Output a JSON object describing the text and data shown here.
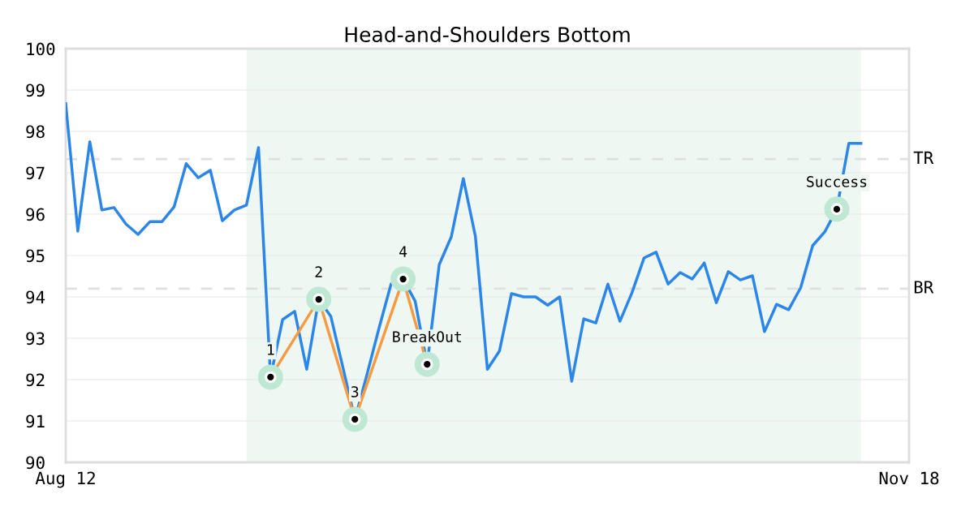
{
  "chart_data": {
    "type": "line",
    "title": "Head-and-Shoulders Bottom",
    "categories": [
      "Aug 12",
      null,
      null,
      null,
      null,
      null,
      null,
      null,
      null,
      null,
      null,
      null,
      null,
      null,
      null,
      null,
      null,
      null,
      null,
      null,
      null,
      null,
      null,
      null,
      null,
      null,
      null,
      null,
      null,
      null,
      null,
      null,
      null,
      null,
      null,
      null,
      null,
      null,
      null,
      null,
      null,
      null,
      null,
      null,
      null,
      null,
      null,
      null,
      null,
      null,
      null,
      null,
      null,
      null,
      null,
      null,
      null,
      null,
      null,
      null,
      null,
      null,
      null,
      null,
      null,
      null,
      null,
      null,
      null,
      null,
      "Nov 18"
    ],
    "ylim": [
      90,
      100
    ],
    "yticks": [
      90,
      91,
      92,
      93,
      94,
      95,
      96,
      97,
      98,
      99,
      100
    ],
    "grid": "y",
    "series": [
      {
        "color": "#2b86e8",
        "values": [
          98.67,
          95.59,
          97.75,
          96.1,
          96.16,
          95.76,
          95.51,
          95.82,
          95.82,
          96.18,
          97.22,
          96.88,
          97.06,
          95.84,
          96.1,
          96.22,
          97.61,
          92.06,
          93.45,
          93.65,
          92.25,
          93.94,
          93.53,
          92.3,
          91.04,
          92.12,
          93.24,
          94.31,
          94.43,
          93.9,
          92.37,
          94.78,
          95.45,
          96.86,
          95.47,
          92.25,
          92.69,
          94.08,
          94.0,
          94.0,
          93.8,
          94.0,
          91.96,
          93.47,
          93.37,
          94.31,
          93.41,
          94.1,
          94.94,
          95.08,
          94.31,
          94.59,
          94.43,
          94.82,
          93.86,
          94.61,
          94.41,
          94.51,
          93.16,
          93.82,
          93.69,
          94.22,
          95.24,
          95.57,
          96.12,
          97.71,
          97.71,
          null,
          null,
          null,
          null
        ]
      },
      {
        "type": "line",
        "color": "#f59c42",
        "marker": "circle",
        "values": [
          null,
          null,
          null,
          null,
          null,
          null,
          null,
          null,
          null,
          null,
          null,
          null,
          null,
          null,
          null,
          null,
          null,
          92.06,
          null,
          null,
          null,
          93.94,
          null,
          null,
          91.04,
          null,
          null,
          null,
          94.43,
          null,
          92.37,
          null,
          null,
          null,
          null,
          null,
          null,
          null,
          null,
          null,
          null,
          null,
          null,
          null,
          null,
          null,
          null,
          null,
          null,
          null,
          null,
          null,
          null,
          null,
          null,
          null,
          null,
          null,
          null,
          null,
          null,
          null,
          null,
          null,
          null,
          null,
          null,
          null,
          null,
          null,
          null
        ]
      },
      {
        "type": "scatter",
        "color": "#bfe8d4",
        "values": [
          null,
          null,
          null,
          null,
          null,
          null,
          null,
          null,
          null,
          null,
          null,
          null,
          null,
          null,
          null,
          null,
          null,
          null,
          null,
          null,
          null,
          null,
          null,
          null,
          null,
          null,
          null,
          null,
          null,
          null,
          null,
          null,
          null,
          null,
          null,
          null,
          null,
          null,
          null,
          null,
          null,
          null,
          null,
          null,
          null,
          null,
          null,
          null,
          null,
          null,
          null,
          null,
          null,
          null,
          null,
          null,
          null,
          null,
          null,
          null,
          null,
          null,
          null,
          null,
          96.12,
          null,
          null,
          null,
          null,
          null,
          null
        ]
      }
    ],
    "annotations": [
      {
        "text": "1",
        "y": 92.06
      },
      {
        "text": "2",
        "y": 93.94
      },
      {
        "text": "3",
        "y": 91.04
      },
      {
        "text": "4",
        "y": 94.43
      },
      {
        "text": "BreakOut",
        "y": 92.37
      },
      {
        "text": "Success",
        "y": 96.12
      }
    ],
    "ref_lines": [
      {
        "axis": "y",
        "value": 97.33,
        "label": "TR",
        "color": "#e0e0e0",
        "line_style": "dashed"
      },
      {
        "axis": "y",
        "value": 94.2,
        "label": "BR",
        "color": "#e0e0e0",
        "line_style": "dashed"
      }
    ]
  }
}
